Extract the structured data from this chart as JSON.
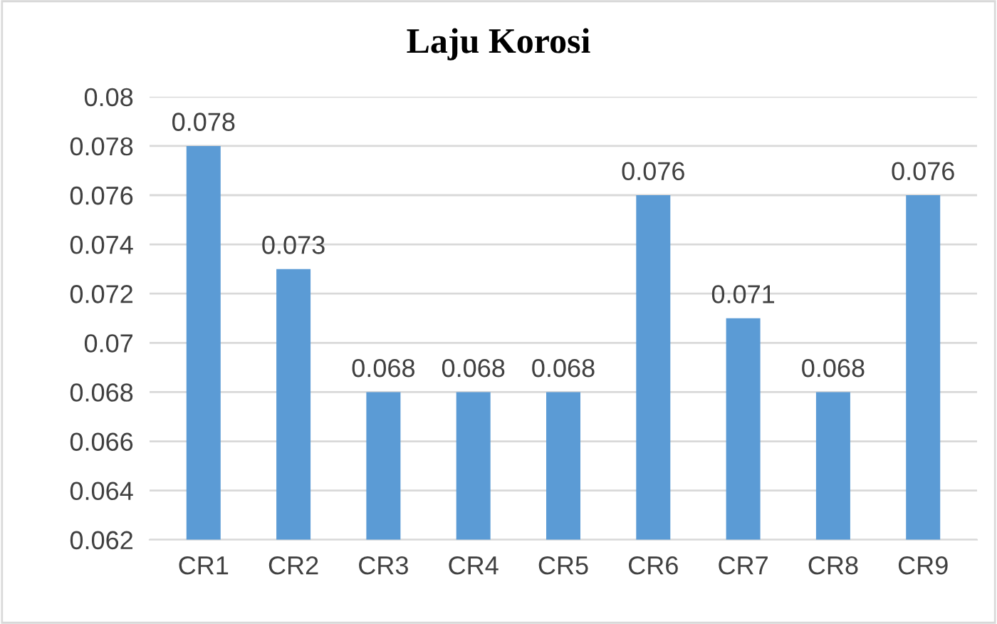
{
  "chart_data": {
    "type": "bar",
    "title": "Laju Korosi",
    "categories": [
      "CR1",
      "CR2",
      "CR3",
      "CR4",
      "CR5",
      "CR6",
      "CR7",
      "CR8",
      "CR9"
    ],
    "values": [
      0.078,
      0.073,
      0.068,
      0.068,
      0.068,
      0.076,
      0.071,
      0.068,
      0.076
    ],
    "color": "#5b9bd5",
    "ylim": [
      0.062,
      0.08
    ],
    "yticks": [
      0.062,
      0.064,
      0.066,
      0.068,
      0.07,
      0.072,
      0.074,
      0.076,
      0.078,
      0.08
    ],
    "grid": "y",
    "data_labels": true,
    "legend": false
  }
}
